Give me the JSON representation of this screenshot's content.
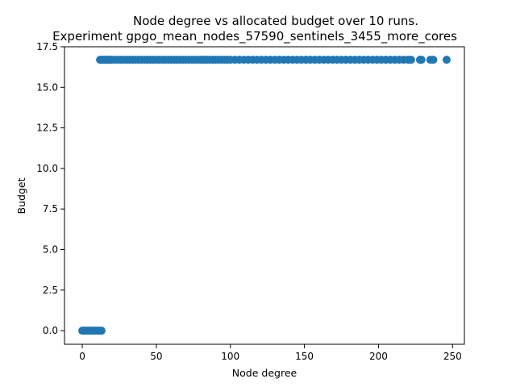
{
  "chart_data": {
    "type": "scatter",
    "title": "Node degree vs allocated budget over 10 runs.",
    "subtitle": "Experiment gpgo_mean_nodes_57590_sentinels_3455_more_cores",
    "xlabel": "Node degree",
    "ylabel": "Budget",
    "xlim": [
      -12,
      258
    ],
    "ylim": [
      -0.84,
      17.5
    ],
    "x_ticks": [
      0,
      50,
      100,
      150,
      200,
      250
    ],
    "x_tick_labels": [
      "0",
      "50",
      "100",
      "150",
      "200",
      "250"
    ],
    "y_ticks": [
      0.0,
      2.5,
      5.0,
      7.5,
      10.0,
      12.5,
      15.0,
      17.5
    ],
    "y_tick_labels": [
      "0.0",
      "2.5",
      "5.0",
      "7.5",
      "10.0",
      "12.5",
      "15.0",
      "17.5"
    ],
    "grid": false,
    "legend": "none",
    "marker_color": "#1f77b4",
    "series": [
      {
        "x": [
          0,
          1,
          2,
          3,
          4,
          5,
          6,
          7,
          8,
          9,
          10,
          11,
          12,
          13
        ],
        "y": [
          0,
          0,
          0,
          0,
          0,
          0,
          0,
          0,
          0,
          0,
          0,
          0,
          0,
          0
        ]
      },
      {
        "x": [
          12,
          13,
          14,
          15,
          16,
          17,
          18,
          19,
          20,
          22,
          24,
          26,
          28,
          30,
          32,
          34,
          36,
          38,
          40,
          42,
          44,
          46,
          48,
          50,
          52,
          54,
          56,
          58,
          60,
          62,
          64,
          66,
          68,
          70,
          72,
          74,
          76,
          78,
          80,
          82,
          84,
          86,
          88,
          90,
          92,
          94,
          96,
          98,
          100,
          103,
          106,
          109,
          112,
          115,
          118,
          121,
          124,
          127,
          130,
          133,
          136,
          139,
          142,
          145,
          148,
          151,
          154,
          157,
          160,
          163,
          166,
          169,
          172,
          175,
          178,
          181,
          184,
          187,
          190,
          193,
          196,
          199,
          202,
          205,
          208,
          211,
          214,
          217,
          220,
          222,
          228,
          229,
          235,
          237,
          246
        ],
        "y": [
          16.7,
          16.7,
          16.7,
          16.7,
          16.7,
          16.7,
          16.7,
          16.7,
          16.7,
          16.7,
          16.7,
          16.7,
          16.7,
          16.7,
          16.7,
          16.7,
          16.7,
          16.7,
          16.7,
          16.7,
          16.7,
          16.7,
          16.7,
          16.7,
          16.7,
          16.7,
          16.7,
          16.7,
          16.7,
          16.7,
          16.7,
          16.7,
          16.7,
          16.7,
          16.7,
          16.7,
          16.7,
          16.7,
          16.7,
          16.7,
          16.7,
          16.7,
          16.7,
          16.7,
          16.7,
          16.7,
          16.7,
          16.7,
          16.7,
          16.7,
          16.7,
          16.7,
          16.7,
          16.7,
          16.7,
          16.7,
          16.7,
          16.7,
          16.7,
          16.7,
          16.7,
          16.7,
          16.7,
          16.7,
          16.7,
          16.7,
          16.7,
          16.7,
          16.7,
          16.7,
          16.7,
          16.7,
          16.7,
          16.7,
          16.7,
          16.7,
          16.7,
          16.7,
          16.7,
          16.7,
          16.7,
          16.7,
          16.7,
          16.7,
          16.7,
          16.7,
          16.7,
          16.7,
          16.7,
          16.7,
          16.7,
          16.7,
          16.7,
          16.7,
          16.7
        ]
      }
    ]
  }
}
